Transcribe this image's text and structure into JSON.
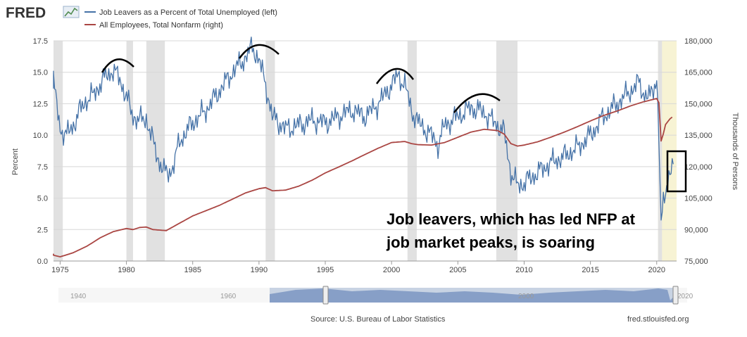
{
  "header": {
    "logo": "FRED",
    "legend": [
      {
        "label": "Job Leavers as a Percent of Total Unemployed (left)",
        "color": "#4572a7"
      },
      {
        "label": "All Employees, Total Nonfarm (right)",
        "color": "#aa4643"
      }
    ]
  },
  "annotation": {
    "line1": "Job leavers, which has led NFP at",
    "line2": "job market peaks, is soaring"
  },
  "footer": {
    "source": "Source: U.S. Bureau of Labor Statistics",
    "site": "fred.stlouisfed.org"
  },
  "navigator": {
    "labels": [
      "1940",
      "1960",
      "2000",
      "2020"
    ]
  },
  "chart_data": {
    "type": "line",
    "x_range": [
      1974.5,
      2021.5
    ],
    "x_ticks": [
      1975,
      1980,
      1985,
      1990,
      1995,
      2000,
      2005,
      2010,
      2015,
      2020
    ],
    "ylabel": "Percent",
    "ylim": [
      0,
      17.5
    ],
    "y_ticks": [
      0.0,
      2.5,
      5.0,
      7.5,
      10.0,
      12.5,
      15.0,
      17.5
    ],
    "y2label": "Thousands of Persons",
    "y2lim": [
      75000,
      180000
    ],
    "y2_ticks": [
      75000,
      90000,
      105000,
      120000,
      135000,
      150000,
      165000,
      180000
    ],
    "recessions": [
      [
        1974.0,
        1975.2
      ],
      [
        1980.0,
        1980.5
      ],
      [
        1981.5,
        1982.9
      ],
      [
        1990.5,
        1991.2
      ],
      [
        2001.2,
        2001.9
      ],
      [
        2007.9,
        2009.5
      ],
      [
        2020.1,
        2020.4
      ]
    ],
    "shaded_recent": [
      2020.1,
      2021.5
    ],
    "series": [
      {
        "name": "Job Leavers as a Percent of Total Unemployed (left)",
        "axis": "left",
        "color": "#4572a7",
        "x": [
          1974.0,
          1974.5,
          1975.0,
          1975.5,
          1976.0,
          1976.5,
          1977.0,
          1977.5,
          1978.0,
          1978.5,
          1979.0,
          1979.5,
          1980.0,
          1980.5,
          1981.0,
          1981.5,
          1982.0,
          1982.5,
          1983.0,
          1983.5,
          1984.0,
          1985.0,
          1986.0,
          1987.0,
          1988.0,
          1989.0,
          1989.5,
          1990.0,
          1990.5,
          1991.0,
          1991.5,
          1992.0,
          1993.0,
          1994.0,
          1995.0,
          1996.0,
          1997.0,
          1998.0,
          1999.0,
          2000.0,
          2000.5,
          2001.0,
          2001.5,
          2002.0,
          2003.0,
          2003.5,
          2004.0,
          2005.0,
          2006.0,
          2007.0,
          2007.5,
          2008.0,
          2008.5,
          2009.0,
          2009.5,
          2010.0,
          2011.0,
          2012.0,
          2013.0,
          2014.0,
          2015.0,
          2016.0,
          2017.0,
          2018.0,
          2018.7,
          2019.0,
          2019.5,
          2020.0,
          2020.2,
          2020.3,
          2020.5,
          2020.8,
          2021.0,
          2021.3
        ],
        "values": [
          14.8,
          14.2,
          10.5,
          10.0,
          10.8,
          12.0,
          12.8,
          13.2,
          14.0,
          14.8,
          15.1,
          14.5,
          13.0,
          11.5,
          11.2,
          11.3,
          9.5,
          7.8,
          6.9,
          7.4,
          9.5,
          11.0,
          12.0,
          13.5,
          15.0,
          16.2,
          17.0,
          16.0,
          14.0,
          11.5,
          11.0,
          10.5,
          10.8,
          11.2,
          11.0,
          11.5,
          12.0,
          11.5,
          12.5,
          14.0,
          14.8,
          14.0,
          12.0,
          11.0,
          10.0,
          9.2,
          10.8,
          11.5,
          12.2,
          11.8,
          11.2,
          10.8,
          10.2,
          7.0,
          6.0,
          6.2,
          7.0,
          7.8,
          8.3,
          9.0,
          10.0,
          11.5,
          12.5,
          13.5,
          14.2,
          13.3,
          13.0,
          14.5,
          9.0,
          2.5,
          4.5,
          6.5,
          7.0,
          8.0
        ]
      },
      {
        "name": "All Employees, Total Nonfarm (right)",
        "axis": "right",
        "color": "#aa4643",
        "x": [
          1974.0,
          1975.0,
          1976.0,
          1977.0,
          1978.0,
          1979.0,
          1980.0,
          1980.5,
          1981.0,
          1981.5,
          1982.0,
          1983.0,
          1984.0,
          1985.0,
          1986.0,
          1987.0,
          1988.0,
          1989.0,
          1990.0,
          1990.5,
          1991.0,
          1992.0,
          1993.0,
          1994.0,
          1995.0,
          1996.0,
          1997.0,
          1998.0,
          1999.0,
          2000.0,
          2001.0,
          2001.5,
          2002.0,
          2003.0,
          2004.0,
          2005.0,
          2006.0,
          2007.0,
          2008.0,
          2008.5,
          2009.0,
          2009.5,
          2010.0,
          2011.0,
          2012.0,
          2013.0,
          2014.0,
          2015.0,
          2016.0,
          2017.0,
          2018.0,
          2019.0,
          2020.0,
          2020.2,
          2020.35,
          2020.6,
          2021.0,
          2021.3
        ],
        "values": [
          78500,
          77000,
          79000,
          82000,
          86000,
          89000,
          90500,
          90000,
          91000,
          91200,
          90000,
          89500,
          93000,
          96500,
          99000,
          101500,
          104500,
          107500,
          109500,
          110000,
          108500,
          108800,
          110700,
          113500,
          117000,
          119800,
          122700,
          125800,
          128800,
          131500,
          132000,
          131000,
          130500,
          130300,
          131500,
          134000,
          136500,
          137800,
          137200,
          135500,
          131000,
          129800,
          130300,
          131800,
          134000,
          136400,
          139000,
          141800,
          144400,
          146500,
          148900,
          150900,
          152500,
          150000,
          130000,
          139500,
          142800,
          144300
        ]
      }
    ]
  }
}
